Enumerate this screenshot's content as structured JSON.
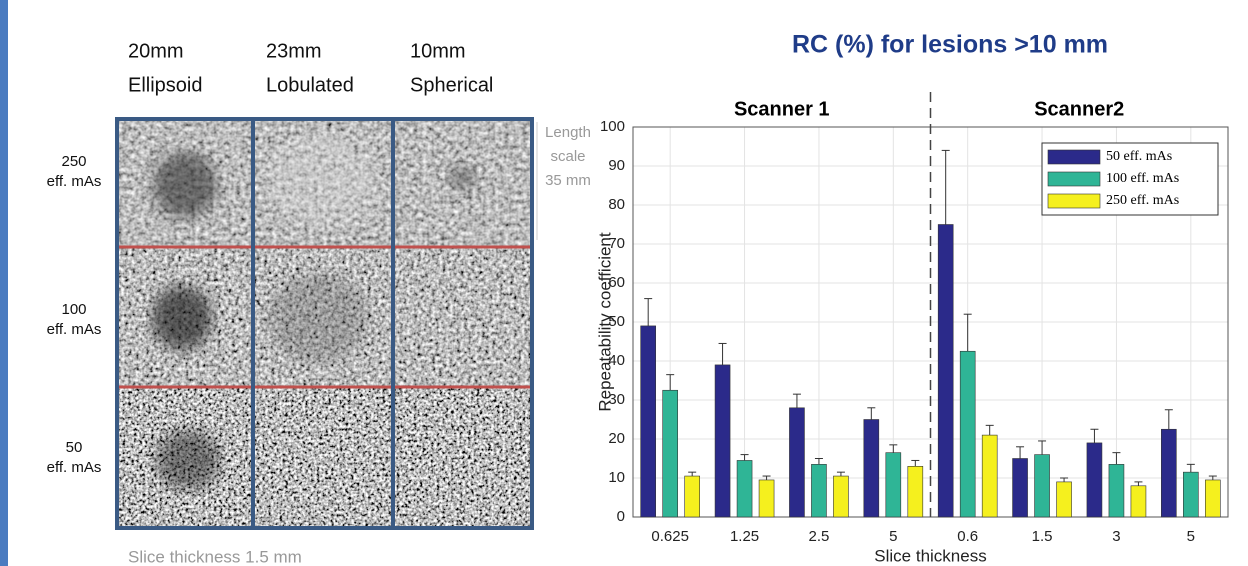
{
  "image_panel": {
    "columns": [
      {
        "size": "20mm",
        "shape": "Ellipsoid"
      },
      {
        "size": "23mm",
        "shape": "Lobulated"
      },
      {
        "size": "10mm",
        "shape": "Spherical"
      }
    ],
    "rows": [
      {
        "dose": "250",
        "unit": "eff. mAs"
      },
      {
        "dose": "100",
        "unit": "eff. mAs"
      },
      {
        "dose": "50",
        "unit": "eff. mAs"
      }
    ],
    "scale_note": [
      "Length",
      "scale",
      "35 mm"
    ],
    "caption": "Slice thickness 1.5 mm"
  },
  "chart_data": {
    "type": "bar",
    "title": "RC (%) for lesions >10 mm",
    "annotations": [
      "Scanner 1",
      "Scanner2"
    ],
    "xlabel": "Slice thickness",
    "ylabel": "Repeatability coefficient",
    "categories": [
      "0.625",
      "1.25",
      "2.5",
      "5",
      "0.6",
      "1.5",
      "3",
      "5"
    ],
    "series": [
      {
        "name": "50 eff. mAs",
        "color": "#2b2a8a",
        "values": [
          49,
          39,
          28,
          25,
          75,
          15,
          19,
          22.5
        ],
        "errors": [
          7,
          5.5,
          3.5,
          3,
          19,
          3,
          3.5,
          5
        ]
      },
      {
        "name": "100 eff. mAs",
        "color": "#2fb596",
        "values": [
          32.5,
          14.5,
          13.5,
          16.5,
          42.5,
          16,
          13.5,
          11.5
        ],
        "errors": [
          4,
          1.5,
          1.5,
          2,
          9.5,
          3.5,
          3,
          2
        ]
      },
      {
        "name": "250 eff. mAs",
        "color": "#f5f01e",
        "values": [
          10.5,
          9.5,
          10.5,
          13,
          21,
          9,
          8,
          9.5
        ],
        "errors": [
          1,
          1,
          1,
          1.5,
          2.5,
          1,
          1,
          1
        ]
      }
    ],
    "ylim": [
      0,
      100
    ],
    "yticks": [
      0,
      10,
      20,
      30,
      40,
      50,
      60,
      70,
      80,
      90,
      100
    ],
    "grid": true,
    "legend": "upper right"
  }
}
